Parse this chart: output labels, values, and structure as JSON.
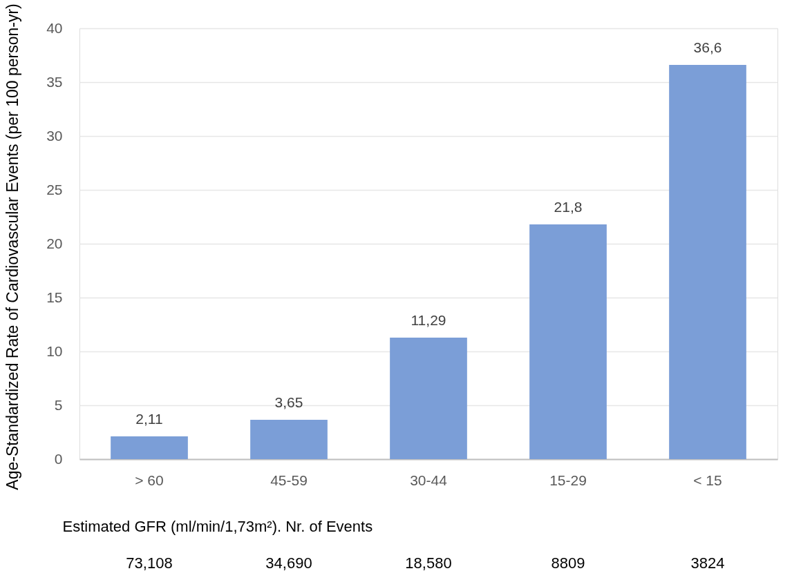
{
  "chart_data": {
    "type": "bar",
    "ylabel": "Age-Standardized Rate of  Cardiovascular  Events (per 100 person-yr)",
    "xlabel": "Estimated GFR (ml/min/1,73m²). Nr. of Events",
    "categories": [
      "> 60",
      "45-59",
      "30-44",
      "15-29",
      "< 15"
    ],
    "values": [
      2.11,
      3.65,
      11.29,
      21.8,
      36.6
    ],
    "value_labels": [
      "2,11",
      "3,65",
      "11,29",
      "21,8",
      "36,6"
    ],
    "color": "#7b9ed7",
    "ylim": [
      0,
      40
    ],
    "yticks": [
      0,
      5,
      10,
      15,
      20,
      25,
      30,
      35,
      40
    ],
    "grid": "y",
    "annotations": [
      "73,108",
      "34,690",
      "18,580",
      "8809",
      "3824"
    ]
  }
}
